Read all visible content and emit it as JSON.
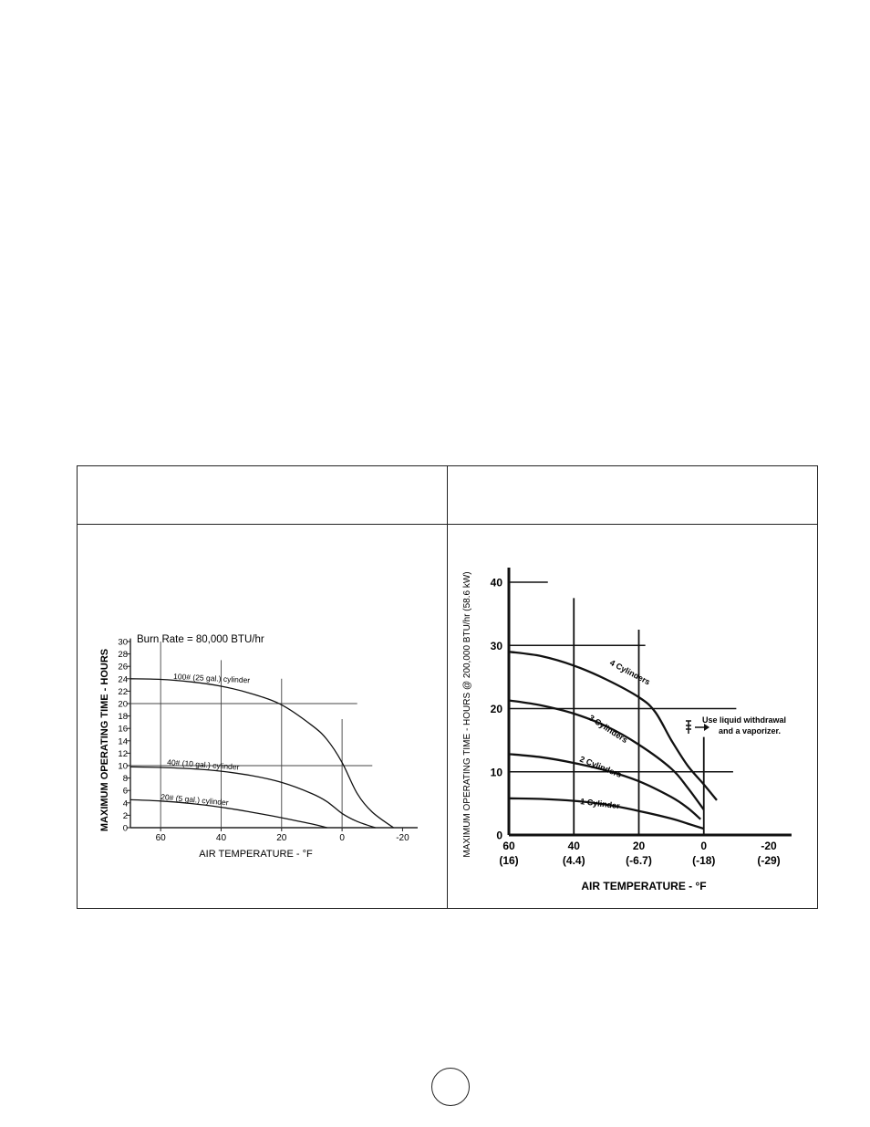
{
  "page": {
    "page_number": ""
  },
  "table": {
    "left_header": "",
    "right_header": ""
  },
  "chart_data": [
    {
      "type": "line",
      "title": "Burn Rate = 80,000 BTU/hr",
      "xlabel": "AIR TEMPERATURE - °F",
      "ylabel": "MAXIMUM OPERATING TIME - HOURS",
      "x_axis_direction": "decreasing",
      "xlim": [
        70,
        -25
      ],
      "ylim": [
        0,
        30
      ],
      "x_ticks": [
        60,
        40,
        20,
        0,
        -20
      ],
      "x_tick_labels": [
        "60",
        "40",
        "20",
        "0",
        "-20"
      ],
      "y_ticks": [
        0,
        2,
        4,
        6,
        8,
        10,
        12,
        14,
        16,
        18,
        20,
        22,
        24,
        26,
        28,
        30
      ],
      "y_tick_labels": [
        "0",
        "2",
        "4",
        "6",
        "8",
        "10",
        "12",
        "14",
        "16",
        "18",
        "20",
        "22",
        "24",
        "26",
        "28",
        "30"
      ],
      "grid": false,
      "reference_lines": [
        {
          "orientation": "vertical",
          "x": 60,
          "y_to": 30
        },
        {
          "orientation": "vertical",
          "x": 40,
          "y_to": 27
        },
        {
          "orientation": "vertical",
          "x": 20,
          "y_to": 24
        },
        {
          "orientation": "vertical",
          "x": 0,
          "y_to": 17.5
        },
        {
          "orientation": "horizontal",
          "y": 20,
          "x_to": -5
        },
        {
          "orientation": "horizontal",
          "y": 10,
          "x_to": -10
        }
      ],
      "series": [
        {
          "name": "100# (25 gal.) cylinder",
          "x": [
            70,
            60,
            50,
            40,
            30,
            20,
            10,
            5,
            0,
            -5,
            -10,
            -17
          ],
          "y": [
            24,
            23.9,
            23.5,
            22.8,
            21.6,
            19.8,
            16.5,
            14.2,
            10.5,
            5.5,
            2.5,
            0
          ]
        },
        {
          "name": "40# (10 gal.) cylinder",
          "x": [
            70,
            60,
            50,
            40,
            30,
            20,
            10,
            5,
            0,
            -5,
            -11
          ],
          "y": [
            9.8,
            9.7,
            9.5,
            9.1,
            8.4,
            7.3,
            5.5,
            4.2,
            2.3,
            1.0,
            0
          ]
        },
        {
          "name": "20# (5 gal.) cylinder",
          "x": [
            70,
            60,
            50,
            40,
            30,
            20,
            10,
            5
          ],
          "y": [
            4.5,
            4.3,
            3.9,
            3.3,
            2.5,
            1.6,
            0.6,
            0
          ]
        }
      ]
    },
    {
      "type": "line",
      "title": "",
      "xlabel": "AIR TEMPERATURE - °F",
      "ylabel": "MAXIMUM OPERATING TIME - HOURS @ 200,000 BTU/hr (58.6 kW)",
      "x_axis_direction": "decreasing",
      "xlim": [
        60,
        -27
      ],
      "ylim": [
        0,
        42
      ],
      "x_ticks": [
        60,
        40,
        20,
        0,
        -20
      ],
      "x_tick_labels": [
        "60",
        "40",
        "20",
        "0",
        "-20"
      ],
      "x_tick_sublabels": [
        "(16)",
        "(4.4)",
        "(-6.7)",
        "(-18)",
        "(-29)"
      ],
      "y_ticks": [
        0,
        10,
        20,
        30,
        40
      ],
      "y_tick_labels": [
        "0",
        "10",
        "20",
        "30",
        "40"
      ],
      "grid": false,
      "annotation": [
        "Use liquid withdrawal",
        "and a vaporizer."
      ],
      "reference_lines": [
        {
          "orientation": "vertical",
          "x": 40,
          "y_to": 37.5
        },
        {
          "orientation": "vertical",
          "x": 20,
          "y_to": 32.5
        },
        {
          "orientation": "vertical",
          "x": 0,
          "y_to": 15.5
        },
        {
          "orientation": "horizontal",
          "y": 40,
          "x_to": 48
        },
        {
          "orientation": "horizontal",
          "y": 30,
          "x_to": 18
        },
        {
          "orientation": "horizontal",
          "y": 20,
          "x_to": -10
        },
        {
          "orientation": "horizontal",
          "y": 10,
          "x_to": -9
        }
      ],
      "series": [
        {
          "name": "4 Cylinders",
          "x": [
            60,
            50,
            40,
            30,
            20,
            15,
            10,
            5,
            0,
            -4
          ],
          "y": [
            29,
            28.3,
            26.8,
            24.6,
            21.8,
            19.5,
            15,
            11,
            8,
            5.5
          ]
        },
        {
          "name": "3 Cylinders",
          "x": [
            60,
            50,
            40,
            30,
            20,
            10,
            5,
            0
          ],
          "y": [
            21.3,
            20.5,
            19.2,
            17.2,
            14.3,
            10.5,
            7.5,
            4
          ]
        },
        {
          "name": "2 Cylinders",
          "x": [
            60,
            50,
            40,
            30,
            20,
            10,
            5,
            1
          ],
          "y": [
            12.8,
            12.3,
            11.4,
            10.2,
            8.5,
            6,
            4.3,
            2.5
          ]
        },
        {
          "name": "1 Cylinder",
          "x": [
            60,
            50,
            40,
            30,
            20,
            10,
            5,
            0
          ],
          "y": [
            5.8,
            5.7,
            5.4,
            4.8,
            3.8,
            2.6,
            1.8,
            1
          ]
        }
      ]
    }
  ]
}
